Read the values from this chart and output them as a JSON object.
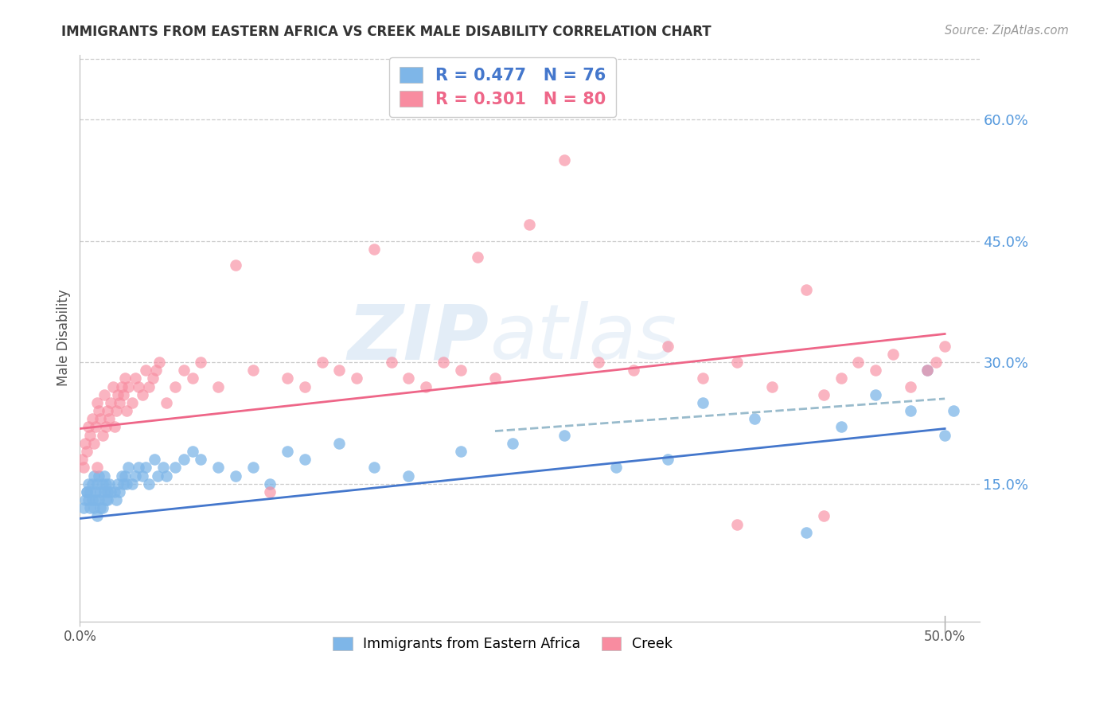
{
  "title": "IMMIGRANTS FROM EASTERN AFRICA VS CREEK MALE DISABILITY CORRELATION CHART",
  "source": "Source: ZipAtlas.com",
  "ylabel": "Male Disability",
  "right_yticks": [
    "60.0%",
    "45.0%",
    "30.0%",
    "15.0%"
  ],
  "right_ytick_vals": [
    0.6,
    0.45,
    0.3,
    0.15
  ],
  "xlim": [
    0.0,
    0.52
  ],
  "ylim": [
    -0.02,
    0.68
  ],
  "color_blue": "#7EB6E8",
  "color_pink": "#F88CA0",
  "color_blue_line": "#4477CC",
  "color_pink_line": "#EE6688",
  "color_dashed_line": "#99BBCC",
  "watermark_zip": "ZIP",
  "watermark_atlas": "atlas",
  "grid_color": "#CCCCCC",
  "blue_scatter_x": [
    0.002,
    0.003,
    0.004,
    0.004,
    0.005,
    0.005,
    0.006,
    0.006,
    0.007,
    0.007,
    0.008,
    0.008,
    0.009,
    0.009,
    0.01,
    0.01,
    0.011,
    0.011,
    0.012,
    0.012,
    0.013,
    0.013,
    0.014,
    0.014,
    0.015,
    0.015,
    0.016,
    0.016,
    0.017,
    0.018,
    0.02,
    0.021,
    0.022,
    0.023,
    0.024,
    0.025,
    0.026,
    0.027,
    0.028,
    0.03,
    0.032,
    0.034,
    0.036,
    0.038,
    0.04,
    0.043,
    0.045,
    0.048,
    0.05,
    0.055,
    0.06,
    0.065,
    0.07,
    0.08,
    0.09,
    0.1,
    0.11,
    0.12,
    0.13,
    0.15,
    0.17,
    0.19,
    0.22,
    0.25,
    0.28,
    0.31,
    0.34,
    0.36,
    0.39,
    0.42,
    0.44,
    0.46,
    0.48,
    0.49,
    0.5,
    0.505
  ],
  "blue_scatter_y": [
    0.12,
    0.13,
    0.14,
    0.14,
    0.13,
    0.15,
    0.12,
    0.14,
    0.13,
    0.15,
    0.12,
    0.16,
    0.13,
    0.14,
    0.11,
    0.15,
    0.13,
    0.16,
    0.12,
    0.14,
    0.12,
    0.15,
    0.14,
    0.16,
    0.13,
    0.15,
    0.14,
    0.13,
    0.15,
    0.14,
    0.14,
    0.13,
    0.15,
    0.14,
    0.16,
    0.15,
    0.16,
    0.15,
    0.17,
    0.15,
    0.16,
    0.17,
    0.16,
    0.17,
    0.15,
    0.18,
    0.16,
    0.17,
    0.16,
    0.17,
    0.18,
    0.19,
    0.18,
    0.17,
    0.16,
    0.17,
    0.15,
    0.19,
    0.18,
    0.2,
    0.17,
    0.16,
    0.19,
    0.2,
    0.21,
    0.17,
    0.18,
    0.25,
    0.23,
    0.09,
    0.22,
    0.26,
    0.24,
    0.29,
    0.21,
    0.24
  ],
  "pink_scatter_x": [
    0.001,
    0.002,
    0.003,
    0.004,
    0.005,
    0.006,
    0.007,
    0.008,
    0.009,
    0.01,
    0.01,
    0.011,
    0.012,
    0.013,
    0.014,
    0.015,
    0.016,
    0.017,
    0.018,
    0.019,
    0.02,
    0.021,
    0.022,
    0.023,
    0.024,
    0.025,
    0.026,
    0.027,
    0.028,
    0.03,
    0.032,
    0.034,
    0.036,
    0.038,
    0.04,
    0.042,
    0.044,
    0.046,
    0.05,
    0.055,
    0.06,
    0.065,
    0.07,
    0.08,
    0.09,
    0.1,
    0.11,
    0.12,
    0.13,
    0.14,
    0.15,
    0.16,
    0.17,
    0.18,
    0.19,
    0.2,
    0.21,
    0.22,
    0.23,
    0.24,
    0.26,
    0.28,
    0.3,
    0.32,
    0.34,
    0.36,
    0.38,
    0.4,
    0.42,
    0.43,
    0.44,
    0.45,
    0.46,
    0.47,
    0.48,
    0.49,
    0.495,
    0.5,
    0.38,
    0.43
  ],
  "pink_scatter_y": [
    0.18,
    0.17,
    0.2,
    0.19,
    0.22,
    0.21,
    0.23,
    0.2,
    0.22,
    0.25,
    0.17,
    0.24,
    0.23,
    0.21,
    0.26,
    0.22,
    0.24,
    0.23,
    0.25,
    0.27,
    0.22,
    0.24,
    0.26,
    0.25,
    0.27,
    0.26,
    0.28,
    0.24,
    0.27,
    0.25,
    0.28,
    0.27,
    0.26,
    0.29,
    0.27,
    0.28,
    0.29,
    0.3,
    0.25,
    0.27,
    0.29,
    0.28,
    0.3,
    0.27,
    0.42,
    0.29,
    0.14,
    0.28,
    0.27,
    0.3,
    0.29,
    0.28,
    0.44,
    0.3,
    0.28,
    0.27,
    0.3,
    0.29,
    0.43,
    0.28,
    0.47,
    0.55,
    0.3,
    0.29,
    0.32,
    0.28,
    0.3,
    0.27,
    0.39,
    0.26,
    0.28,
    0.3,
    0.29,
    0.31,
    0.27,
    0.29,
    0.3,
    0.32,
    0.1,
    0.11
  ],
  "blue_line_x": [
    0.0,
    0.5
  ],
  "blue_line_y": [
    0.107,
    0.218
  ],
  "pink_line_x": [
    0.0,
    0.5
  ],
  "pink_line_y": [
    0.218,
    0.335
  ],
  "dashed_line_x": [
    0.24,
    0.5
  ],
  "dashed_line_y": [
    0.215,
    0.255
  ]
}
